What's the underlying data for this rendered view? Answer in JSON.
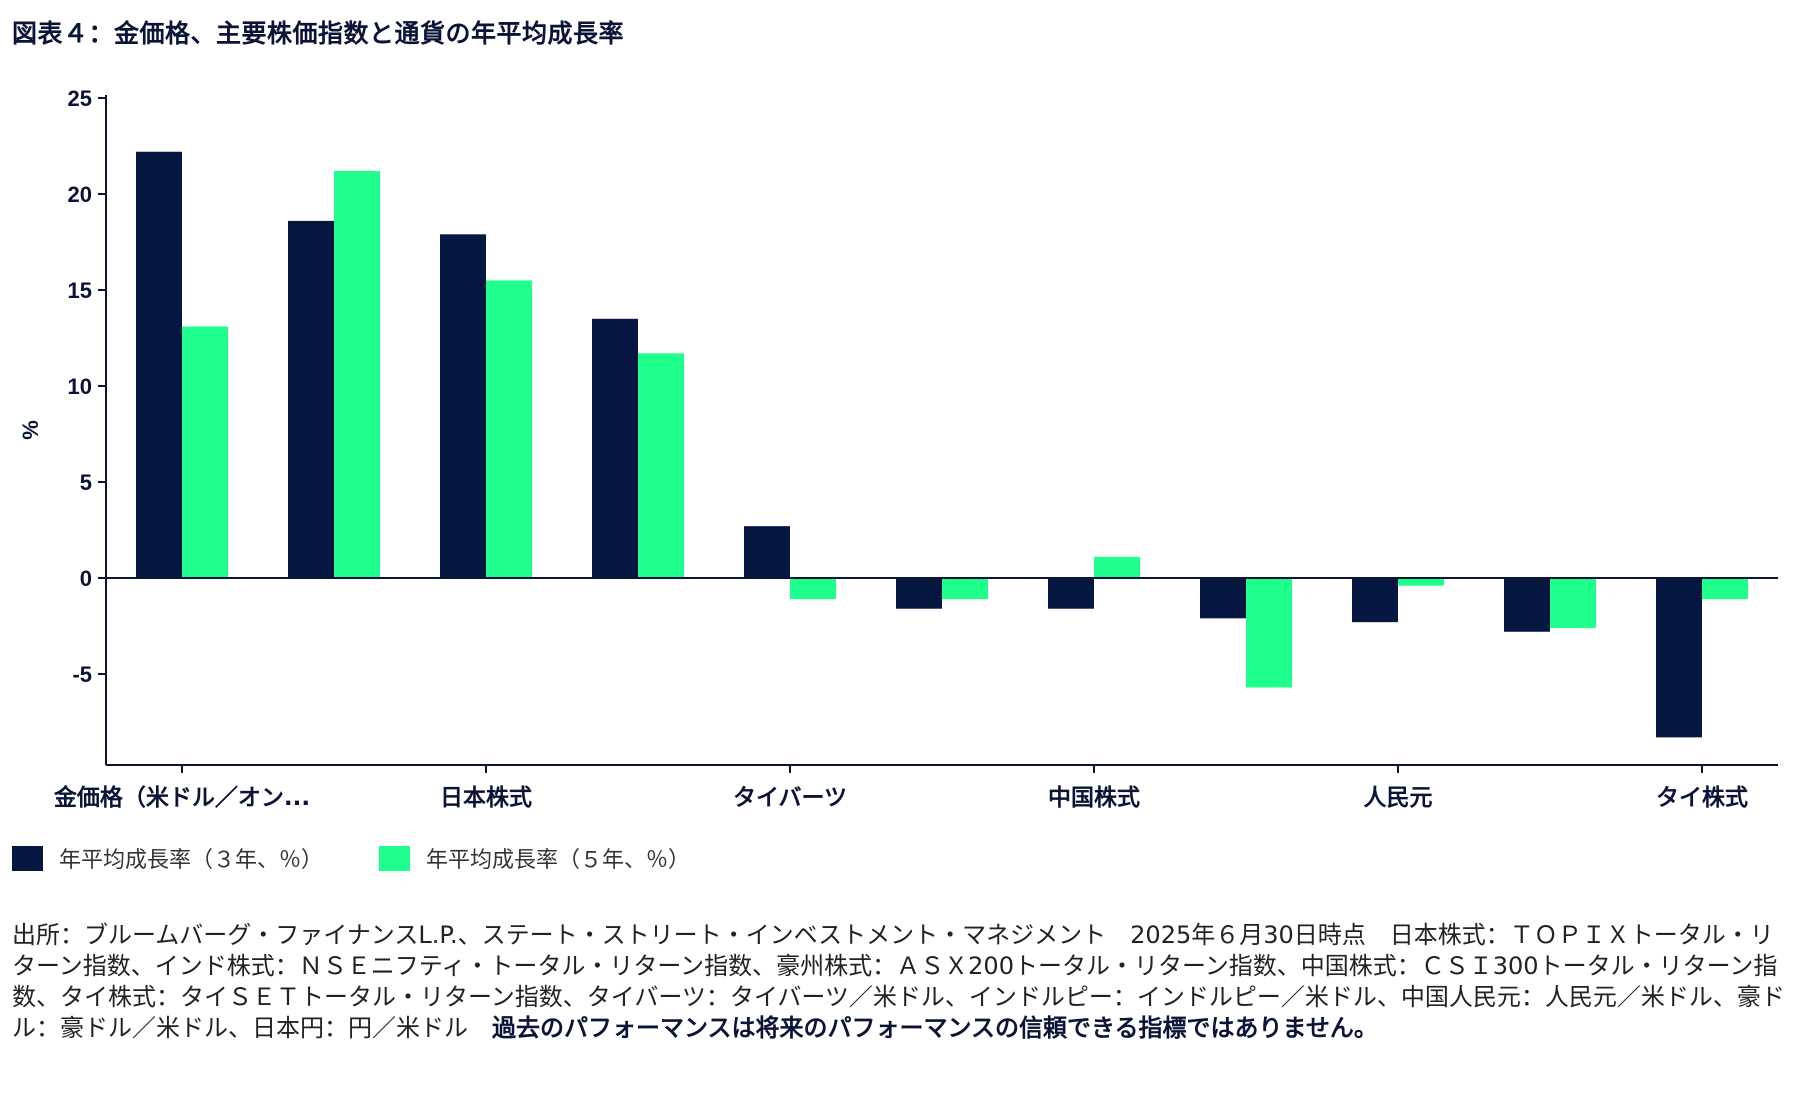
{
  "title": "図表４：金価格、主要株価指数と通貨の年平均成長率",
  "legend": [
    {
      "label": "年平均成長率（３年、％）",
      "color": "#051640"
    },
    {
      "label": "年平均成長率（５年、％）",
      "color": "#1eff8c"
    }
  ],
  "chart_data": {
    "type": "bar",
    "ylabel": "%",
    "ylim": [
      -10,
      25
    ],
    "yticks": [
      25,
      20,
      15,
      10,
      5,
      0,
      -5
    ],
    "tick_labels": [
      "金価格（米ドル／オン...",
      "日本株式",
      "タイバーツ",
      "中国株式",
      "人民元",
      "タイ株式"
    ],
    "labeled_category_indices": [
      0,
      2,
      4,
      6,
      8,
      10
    ],
    "category_count": 11,
    "series": [
      {
        "name": "年平均成長率（３年、％）",
        "color": "#051640",
        "values": [
          22.2,
          18.6,
          17.9,
          13.5,
          2.7,
          -1.6,
          -1.6,
          -2.1,
          -2.3,
          -2.8,
          -8.3
        ]
      },
      {
        "name": "年平均成長率（５年、％）",
        "color": "#1eff8c",
        "values": [
          13.1,
          21.2,
          15.5,
          11.7,
          -1.1,
          -1.1,
          1.1,
          -5.7,
          -0.4,
          -2.6,
          -1.1
        ]
      }
    ],
    "grid": false,
    "legend_position": "bottom-left"
  },
  "source": {
    "text": "出所：ブルームバーグ・ファイナンスL.P.、ステート・ストリート・インベストメント・マネジメント　2025年６月30日時点　日本株式：ＴＯＰＩＸトータル・リターン指数、インド株式：ＮＳＥニフティ・トータル・リターン指数、豪州株式：ＡＳＸ200トータル・リターン指数、中国株式：ＣＳＩ300トータル・リターン指数、タイ株式：タイＳＥＴトータル・リターン指数、タイバーツ：タイバーツ／米ドル、インドルピー：インドルピー／米ドル、中国人民元：人民元／米ドル、豪ドル：豪ドル／米ドル、日本円：円／米ドル　",
    "warning": "過去のパフォーマンスは将来のパフォーマンスの信頼できる指標ではありません。"
  }
}
